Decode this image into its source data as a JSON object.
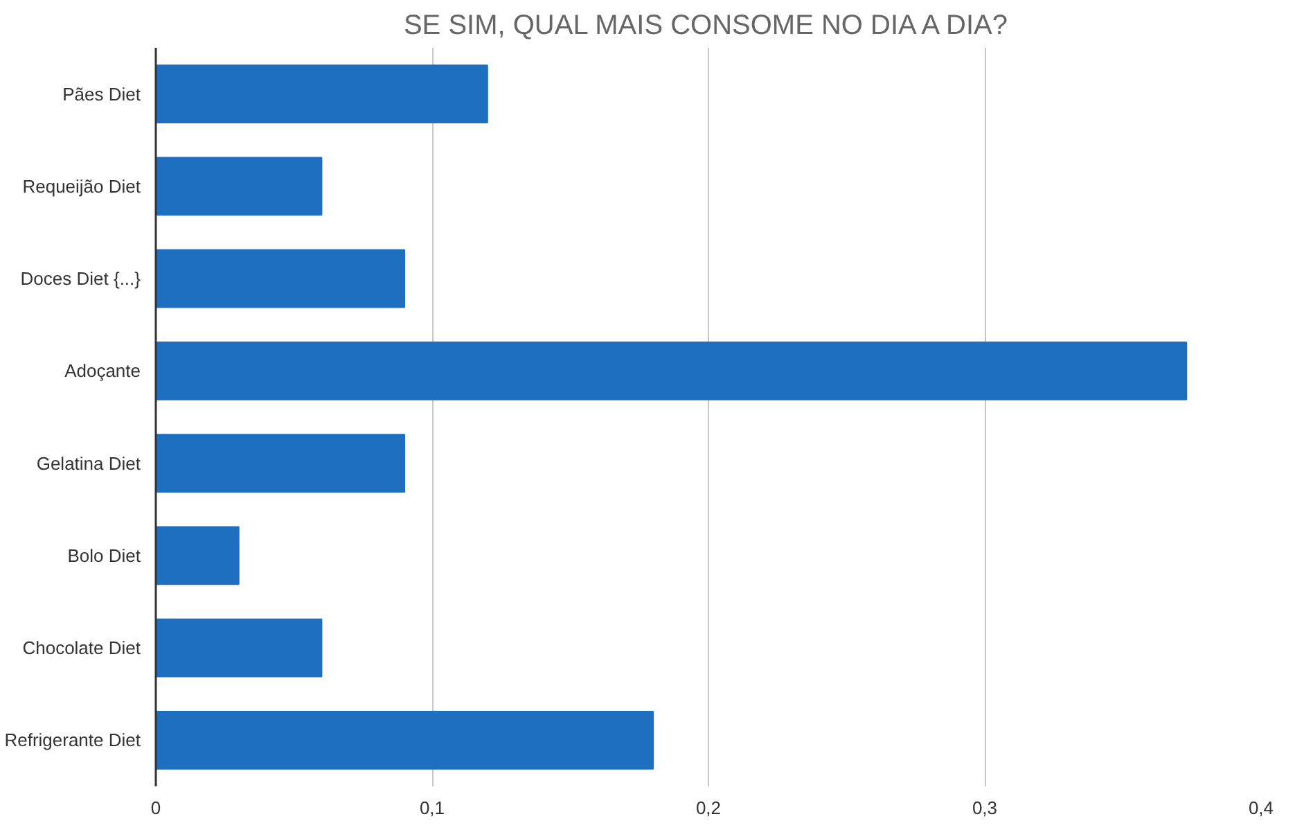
{
  "chart_data": {
    "type": "bar",
    "orientation": "horizontal",
    "title": "SE SIM, QUAL MAIS CONSOME NO DIA A DIA?",
    "categories": [
      "Pães Diet",
      "Requeijão Diet",
      "Doces Diet {...}",
      "Adoçante",
      "Gelatina Diet",
      "Bolo Diet",
      "Chocolate Diet",
      "Refrigerante Diet"
    ],
    "values": [
      0.12,
      0.06,
      0.09,
      0.373,
      0.09,
      0.03,
      0.06,
      0.18
    ],
    "color": "#1f6fc0",
    "xlim": [
      0,
      0.4
    ],
    "xticks": [
      0,
      {
        "value": 0.1,
        "label": "0,1"
      },
      {
        "value": 0.2,
        "label": "0,2"
      },
      {
        "value": 0.3,
        "label": "0,3"
      },
      {
        "value": 0.4,
        "label": "0,4"
      }
    ],
    "grid": "x"
  }
}
